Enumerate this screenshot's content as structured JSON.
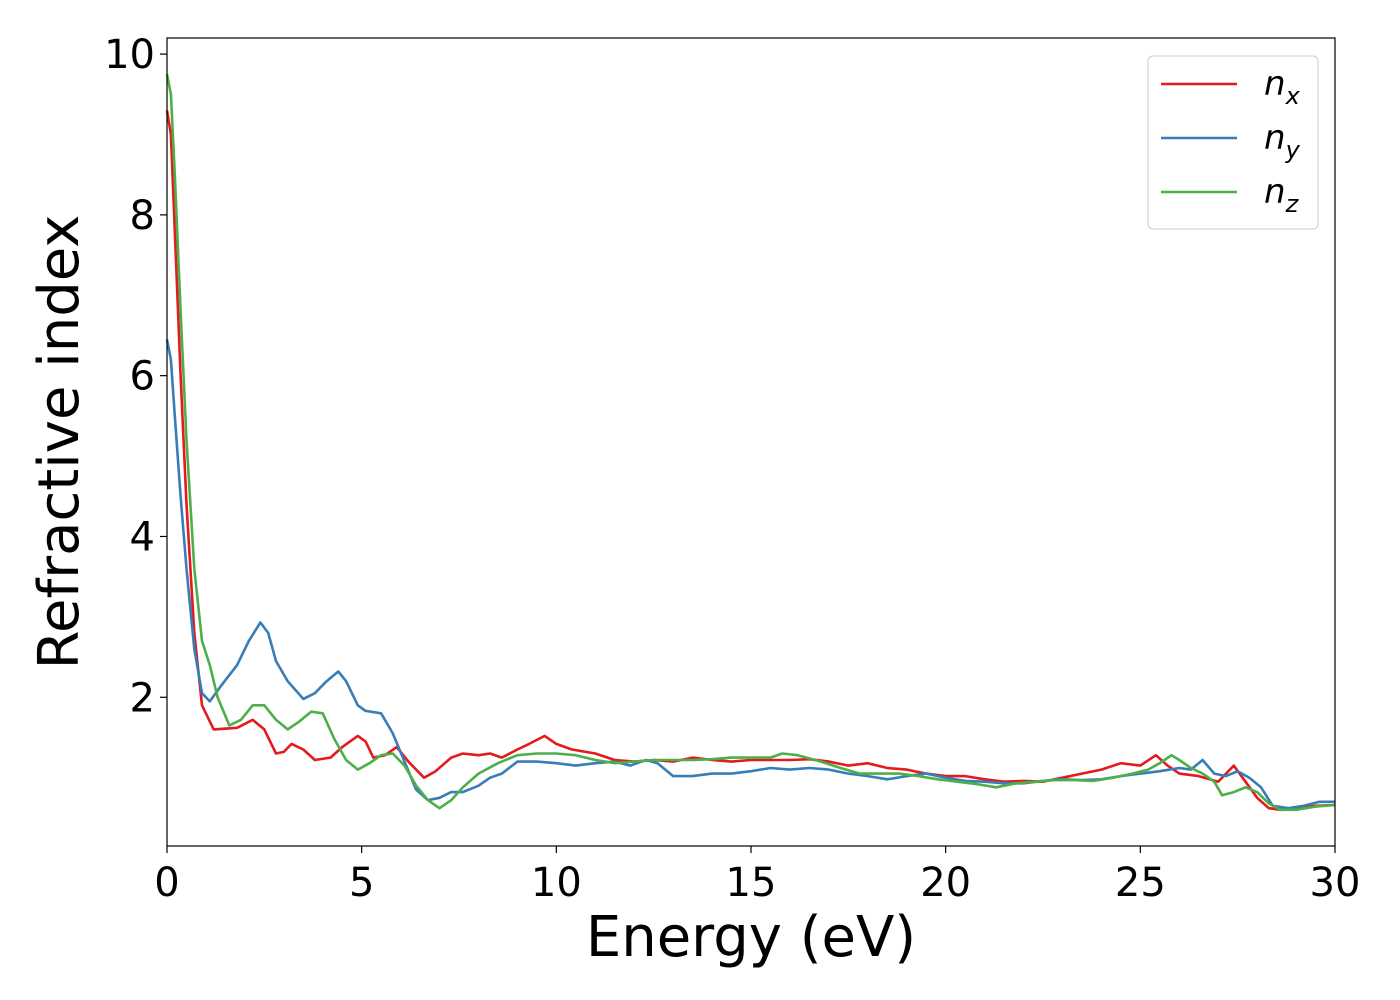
{
  "chart_data": {
    "type": "line",
    "xlabel": "Energy (eV)",
    "ylabel": "Refractive index",
    "xlim": [
      0,
      30
    ],
    "ylim": [
      0.15,
      10.2
    ],
    "x_ticks": [
      "0",
      "5",
      "10",
      "15",
      "20",
      "25",
      "30"
    ],
    "y_ticks": [
      "2",
      "4",
      "6",
      "8",
      "10"
    ],
    "grid": false,
    "legend_position": "top-right",
    "series": [
      {
        "name": "n",
        "subscript": "x",
        "color": "#e41a1c",
        "points": [
          [
            0,
            9.3
          ],
          [
            0.1,
            9.0
          ],
          [
            0.2,
            7.8
          ],
          [
            0.35,
            6.0
          ],
          [
            0.5,
            4.4
          ],
          [
            0.7,
            2.8
          ],
          [
            0.9,
            1.9
          ],
          [
            1.2,
            1.6
          ],
          [
            1.8,
            1.62
          ],
          [
            2.2,
            1.72
          ],
          [
            2.5,
            1.6
          ],
          [
            2.8,
            1.3
          ],
          [
            3.0,
            1.32
          ],
          [
            3.2,
            1.42
          ],
          [
            3.5,
            1.35
          ],
          [
            3.8,
            1.22
          ],
          [
            4.2,
            1.25
          ],
          [
            4.5,
            1.38
          ],
          [
            4.9,
            1.52
          ],
          [
            5.1,
            1.45
          ],
          [
            5.3,
            1.25
          ],
          [
            5.6,
            1.28
          ],
          [
            5.9,
            1.38
          ],
          [
            6.2,
            1.2
          ],
          [
            6.6,
            1.0
          ],
          [
            6.9,
            1.08
          ],
          [
            7.3,
            1.25
          ],
          [
            7.6,
            1.3
          ],
          [
            8.0,
            1.28
          ],
          [
            8.3,
            1.3
          ],
          [
            8.6,
            1.25
          ],
          [
            9.0,
            1.35
          ],
          [
            9.3,
            1.42
          ],
          [
            9.7,
            1.52
          ],
          [
            10.0,
            1.42
          ],
          [
            10.4,
            1.35
          ],
          [
            11.0,
            1.3
          ],
          [
            11.5,
            1.22
          ],
          [
            12.0,
            1.2
          ],
          [
            12.5,
            1.22
          ],
          [
            13.0,
            1.2
          ],
          [
            13.5,
            1.25
          ],
          [
            14.0,
            1.22
          ],
          [
            14.5,
            1.2
          ],
          [
            15.0,
            1.22
          ],
          [
            15.5,
            1.22
          ],
          [
            16.0,
            1.22
          ],
          [
            16.5,
            1.23
          ],
          [
            17.0,
            1.2
          ],
          [
            17.5,
            1.15
          ],
          [
            18.0,
            1.18
          ],
          [
            18.5,
            1.12
          ],
          [
            19.0,
            1.1
          ],
          [
            19.5,
            1.05
          ],
          [
            20.0,
            1.02
          ],
          [
            20.5,
            1.02
          ],
          [
            21.0,
            0.98
          ],
          [
            21.5,
            0.95
          ],
          [
            22.0,
            0.96
          ],
          [
            22.5,
            0.95
          ],
          [
            23.0,
            1.0
          ],
          [
            23.5,
            1.05
          ],
          [
            24.0,
            1.1
          ],
          [
            24.5,
            1.18
          ],
          [
            25.0,
            1.15
          ],
          [
            25.4,
            1.28
          ],
          [
            25.7,
            1.15
          ],
          [
            26.0,
            1.05
          ],
          [
            26.5,
            1.02
          ],
          [
            27.0,
            0.95
          ],
          [
            27.4,
            1.15
          ],
          [
            27.7,
            0.95
          ],
          [
            28.0,
            0.75
          ],
          [
            28.3,
            0.62
          ],
          [
            28.6,
            0.6
          ],
          [
            29.0,
            0.62
          ],
          [
            29.5,
            0.65
          ],
          [
            30.0,
            0.66
          ]
        ]
      },
      {
        "name": "n",
        "subscript": "y",
        "color": "#377eb8",
        "points": [
          [
            0,
            6.45
          ],
          [
            0.1,
            6.2
          ],
          [
            0.2,
            5.5
          ],
          [
            0.35,
            4.5
          ],
          [
            0.5,
            3.6
          ],
          [
            0.7,
            2.6
          ],
          [
            0.9,
            2.05
          ],
          [
            1.1,
            1.95
          ],
          [
            1.4,
            2.15
          ],
          [
            1.8,
            2.4
          ],
          [
            2.1,
            2.7
          ],
          [
            2.4,
            2.93
          ],
          [
            2.6,
            2.8
          ],
          [
            2.8,
            2.45
          ],
          [
            3.1,
            2.2
          ],
          [
            3.5,
            1.98
          ],
          [
            3.8,
            2.05
          ],
          [
            4.1,
            2.2
          ],
          [
            4.4,
            2.32
          ],
          [
            4.6,
            2.2
          ],
          [
            4.9,
            1.9
          ],
          [
            5.1,
            1.83
          ],
          [
            5.5,
            1.8
          ],
          [
            5.8,
            1.55
          ],
          [
            6.1,
            1.2
          ],
          [
            6.4,
            0.85
          ],
          [
            6.7,
            0.72
          ],
          [
            7.0,
            0.75
          ],
          [
            7.3,
            0.82
          ],
          [
            7.6,
            0.82
          ],
          [
            8.0,
            0.9
          ],
          [
            8.3,
            1.0
          ],
          [
            8.6,
            1.05
          ],
          [
            9.0,
            1.2
          ],
          [
            9.5,
            1.2
          ],
          [
            10.0,
            1.18
          ],
          [
            10.5,
            1.15
          ],
          [
            11.0,
            1.18
          ],
          [
            11.5,
            1.2
          ],
          [
            11.9,
            1.15
          ],
          [
            12.3,
            1.22
          ],
          [
            12.6,
            1.18
          ],
          [
            13.0,
            1.02
          ],
          [
            13.5,
            1.02
          ],
          [
            14.0,
            1.05
          ],
          [
            14.5,
            1.05
          ],
          [
            15.0,
            1.08
          ],
          [
            15.5,
            1.12
          ],
          [
            16.0,
            1.1
          ],
          [
            16.5,
            1.12
          ],
          [
            17.0,
            1.1
          ],
          [
            17.5,
            1.05
          ],
          [
            18.0,
            1.02
          ],
          [
            18.5,
            0.98
          ],
          [
            19.0,
            1.02
          ],
          [
            19.5,
            1.05
          ],
          [
            20.0,
            1.0
          ],
          [
            20.5,
            0.96
          ],
          [
            21.0,
            0.95
          ],
          [
            21.5,
            0.93
          ],
          [
            22.0,
            0.93
          ],
          [
            22.5,
            0.96
          ],
          [
            23.0,
            0.98
          ],
          [
            23.5,
            0.97
          ],
          [
            24.0,
            0.98
          ],
          [
            24.5,
            1.02
          ],
          [
            25.0,
            1.05
          ],
          [
            25.5,
            1.08
          ],
          [
            26.0,
            1.12
          ],
          [
            26.3,
            1.1
          ],
          [
            26.6,
            1.22
          ],
          [
            26.9,
            1.05
          ],
          [
            27.2,
            1.02
          ],
          [
            27.5,
            1.08
          ],
          [
            27.8,
            1.0
          ],
          [
            28.1,
            0.88
          ],
          [
            28.4,
            0.65
          ],
          [
            28.8,
            0.62
          ],
          [
            29.2,
            0.65
          ],
          [
            29.6,
            0.7
          ],
          [
            30.0,
            0.7
          ]
        ]
      },
      {
        "name": "n",
        "subscript": "z",
        "color": "#4daf4a",
        "points": [
          [
            0,
            9.75
          ],
          [
            0.1,
            9.5
          ],
          [
            0.2,
            8.5
          ],
          [
            0.35,
            6.8
          ],
          [
            0.5,
            5.2
          ],
          [
            0.7,
            3.6
          ],
          [
            0.9,
            2.7
          ],
          [
            1.1,
            2.4
          ],
          [
            1.3,
            2.0
          ],
          [
            1.6,
            1.65
          ],
          [
            1.9,
            1.72
          ],
          [
            2.2,
            1.9
          ],
          [
            2.5,
            1.9
          ],
          [
            2.8,
            1.72
          ],
          [
            3.1,
            1.6
          ],
          [
            3.4,
            1.7
          ],
          [
            3.7,
            1.82
          ],
          [
            4.0,
            1.8
          ],
          [
            4.3,
            1.48
          ],
          [
            4.6,
            1.22
          ],
          [
            4.9,
            1.1
          ],
          [
            5.2,
            1.18
          ],
          [
            5.5,
            1.28
          ],
          [
            5.8,
            1.3
          ],
          [
            6.1,
            1.15
          ],
          [
            6.4,
            0.9
          ],
          [
            6.7,
            0.72
          ],
          [
            7.0,
            0.62
          ],
          [
            7.3,
            0.72
          ],
          [
            7.6,
            0.88
          ],
          [
            8.0,
            1.05
          ],
          [
            8.5,
            1.18
          ],
          [
            9.0,
            1.28
          ],
          [
            9.5,
            1.3
          ],
          [
            10.0,
            1.3
          ],
          [
            10.5,
            1.28
          ],
          [
            11.0,
            1.22
          ],
          [
            11.5,
            1.18
          ],
          [
            12.0,
            1.2
          ],
          [
            12.5,
            1.22
          ],
          [
            13.0,
            1.22
          ],
          [
            13.5,
            1.22
          ],
          [
            14.0,
            1.23
          ],
          [
            14.5,
            1.25
          ],
          [
            15.0,
            1.25
          ],
          [
            15.5,
            1.25
          ],
          [
            15.8,
            1.3
          ],
          [
            16.2,
            1.28
          ],
          [
            16.8,
            1.2
          ],
          [
            17.3,
            1.12
          ],
          [
            17.8,
            1.05
          ],
          [
            18.3,
            1.05
          ],
          [
            18.8,
            1.05
          ],
          [
            19.3,
            1.02
          ],
          [
            19.8,
            0.98
          ],
          [
            20.3,
            0.95
          ],
          [
            20.8,
            0.92
          ],
          [
            21.3,
            0.88
          ],
          [
            21.8,
            0.93
          ],
          [
            22.3,
            0.95
          ],
          [
            22.8,
            0.97
          ],
          [
            23.3,
            0.97
          ],
          [
            23.8,
            0.96
          ],
          [
            24.3,
            1.0
          ],
          [
            24.8,
            1.05
          ],
          [
            25.2,
            1.1
          ],
          [
            25.5,
            1.18
          ],
          [
            25.8,
            1.28
          ],
          [
            26.0,
            1.22
          ],
          [
            26.3,
            1.12
          ],
          [
            26.6,
            1.05
          ],
          [
            26.9,
            0.95
          ],
          [
            27.1,
            0.78
          ],
          [
            27.4,
            0.82
          ],
          [
            27.7,
            0.88
          ],
          [
            28.0,
            0.82
          ],
          [
            28.3,
            0.68
          ],
          [
            28.6,
            0.6
          ],
          [
            29.0,
            0.6
          ],
          [
            29.5,
            0.64
          ],
          [
            30.0,
            0.66
          ]
        ]
      }
    ]
  }
}
